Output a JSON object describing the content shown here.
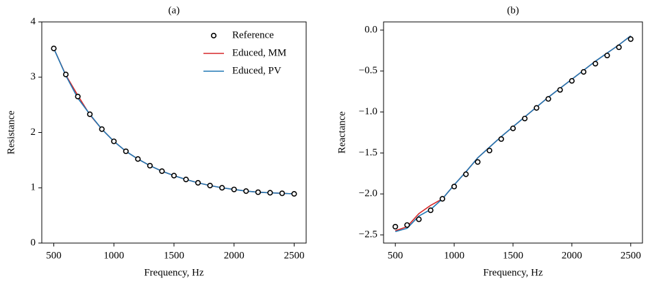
{
  "chart_data": [
    {
      "type": "line",
      "title": "(a)",
      "xlabel": "Frequency, Hz",
      "ylabel": "Resistance",
      "x": [
        500,
        600,
        700,
        800,
        900,
        1000,
        1100,
        1200,
        1300,
        1400,
        1500,
        1600,
        1700,
        1800,
        1900,
        2000,
        2100,
        2200,
        2300,
        2400,
        2500
      ],
      "series": [
        {
          "name": "Reference",
          "color": "#000000",
          "marker": "o",
          "values": [
            3.52,
            3.05,
            2.65,
            2.33,
            2.06,
            1.84,
            1.66,
            1.52,
            1.4,
            1.3,
            1.22,
            1.15,
            1.09,
            1.04,
            1.0,
            0.97,
            0.94,
            0.92,
            0.91,
            0.9,
            0.89
          ]
        },
        {
          "name": "Educed, MM",
          "color": "#d62728",
          "values": [
            3.52,
            3.04,
            2.67,
            2.32,
            2.06,
            1.84,
            1.66,
            1.52,
            1.4,
            1.3,
            1.22,
            1.15,
            1.09,
            1.04,
            1.0,
            0.97,
            0.94,
            0.92,
            0.91,
            0.9,
            0.89
          ]
        },
        {
          "name": "Educed, PV",
          "color": "#1f77b4",
          "values": [
            3.52,
            3.03,
            2.62,
            2.33,
            2.06,
            1.84,
            1.66,
            1.52,
            1.4,
            1.3,
            1.22,
            1.15,
            1.09,
            1.04,
            1.0,
            0.97,
            0.94,
            0.92,
            0.91,
            0.9,
            0.89
          ]
        }
      ],
      "xlim": [
        400,
        2600
      ],
      "xticks": [
        500,
        1000,
        1500,
        2000,
        2500
      ],
      "ylim": [
        0,
        4
      ],
      "yticks": [
        0,
        1,
        2,
        3,
        4
      ],
      "legend": "upper right"
    },
    {
      "type": "line",
      "title": "(b)",
      "xlabel": "Frequency, Hz",
      "ylabel": "Reactance",
      "x": [
        500,
        600,
        700,
        800,
        900,
        1000,
        1100,
        1200,
        1300,
        1400,
        1500,
        1600,
        1700,
        1800,
        1900,
        2000,
        2100,
        2200,
        2300,
        2400,
        2500
      ],
      "series": [
        {
          "name": "Reference",
          "color": "#000000",
          "marker": "o",
          "values": [
            -2.4,
            -2.38,
            -2.31,
            -2.2,
            -2.06,
            -1.91,
            -1.76,
            -1.61,
            -1.47,
            -1.33,
            -1.2,
            -1.08,
            -0.95,
            -0.84,
            -0.73,
            -0.62,
            -0.51,
            -0.41,
            -0.31,
            -0.21,
            -0.11
          ]
        },
        {
          "name": "Educed, MM",
          "color": "#d62728",
          "values": [
            -2.45,
            -2.4,
            -2.24,
            -2.14,
            -2.06,
            -1.89,
            -1.73,
            -1.56,
            -1.43,
            -1.3,
            -1.18,
            -1.06,
            -0.94,
            -0.82,
            -0.71,
            -0.6,
            -0.49,
            -0.38,
            -0.28,
            -0.18,
            -0.07
          ]
        },
        {
          "name": "Educed, PV",
          "color": "#1f77b4",
          "values": [
            -2.46,
            -2.42,
            -2.27,
            -2.19,
            -2.06,
            -1.89,
            -1.73,
            -1.56,
            -1.43,
            -1.3,
            -1.18,
            -1.06,
            -0.94,
            -0.82,
            -0.71,
            -0.6,
            -0.49,
            -0.38,
            -0.28,
            -0.18,
            -0.07
          ]
        }
      ],
      "xlim": [
        400,
        2600
      ],
      "xticks": [
        500,
        1000,
        1500,
        2000,
        2500
      ],
      "ylim": [
        -2.6,
        0.1
      ],
      "yticks": [
        {
          "value": 0,
          "label": "0.0"
        },
        {
          "value": -0.5,
          "label": "−0.5"
        },
        {
          "value": -1,
          "label": "−1.0"
        },
        {
          "value": -1.5,
          "label": "−1.5"
        },
        {
          "value": -2,
          "label": "−2.0"
        },
        {
          "value": -2.5,
          "label": "−2.5"
        }
      ]
    }
  ]
}
